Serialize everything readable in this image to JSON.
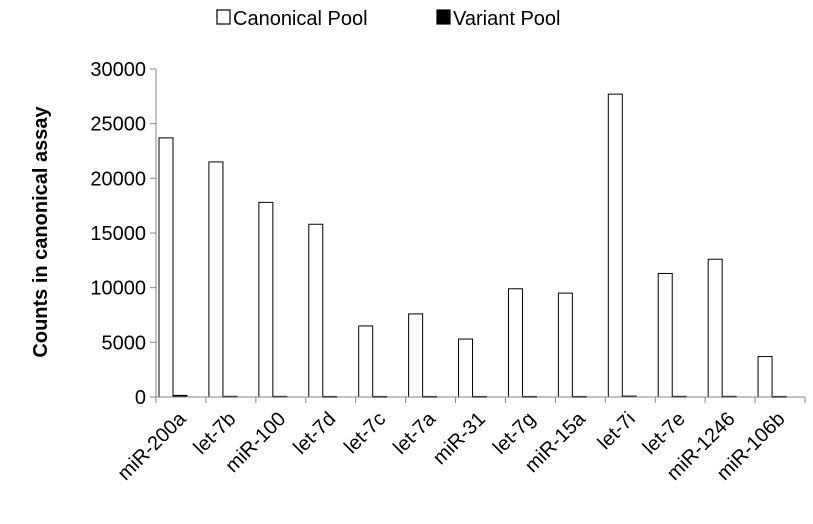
{
  "chart_data": {
    "type": "bar",
    "title": "",
    "xlabel": "",
    "ylabel": "Counts in canonical assay",
    "ylim": [
      0,
      30000
    ],
    "yticks": [
      0,
      5000,
      10000,
      15000,
      20000,
      25000,
      30000
    ],
    "grid": false,
    "legend_position": "top",
    "categories": [
      "miR-200a",
      "let-7b",
      "miR-100",
      "let-7d",
      "let-7c",
      "let-7a",
      "miR-31",
      "let-7g",
      "miR-15a",
      "let-7i",
      "let-7e",
      "miR-1246",
      "miR-106b"
    ],
    "series": [
      {
        "name": "Canonical Pool",
        "fill": "#ffffff",
        "stroke": "#000000",
        "values": [
          23700,
          21500,
          17800,
          15800,
          6500,
          7600,
          5300,
          9900,
          9500,
          27700,
          11300,
          12600,
          3700
        ]
      },
      {
        "name": "Variant Pool",
        "fill": "#000000",
        "stroke": "#000000",
        "values": [
          150,
          60,
          60,
          50,
          50,
          50,
          50,
          50,
          50,
          80,
          60,
          60,
          50
        ]
      }
    ]
  }
}
